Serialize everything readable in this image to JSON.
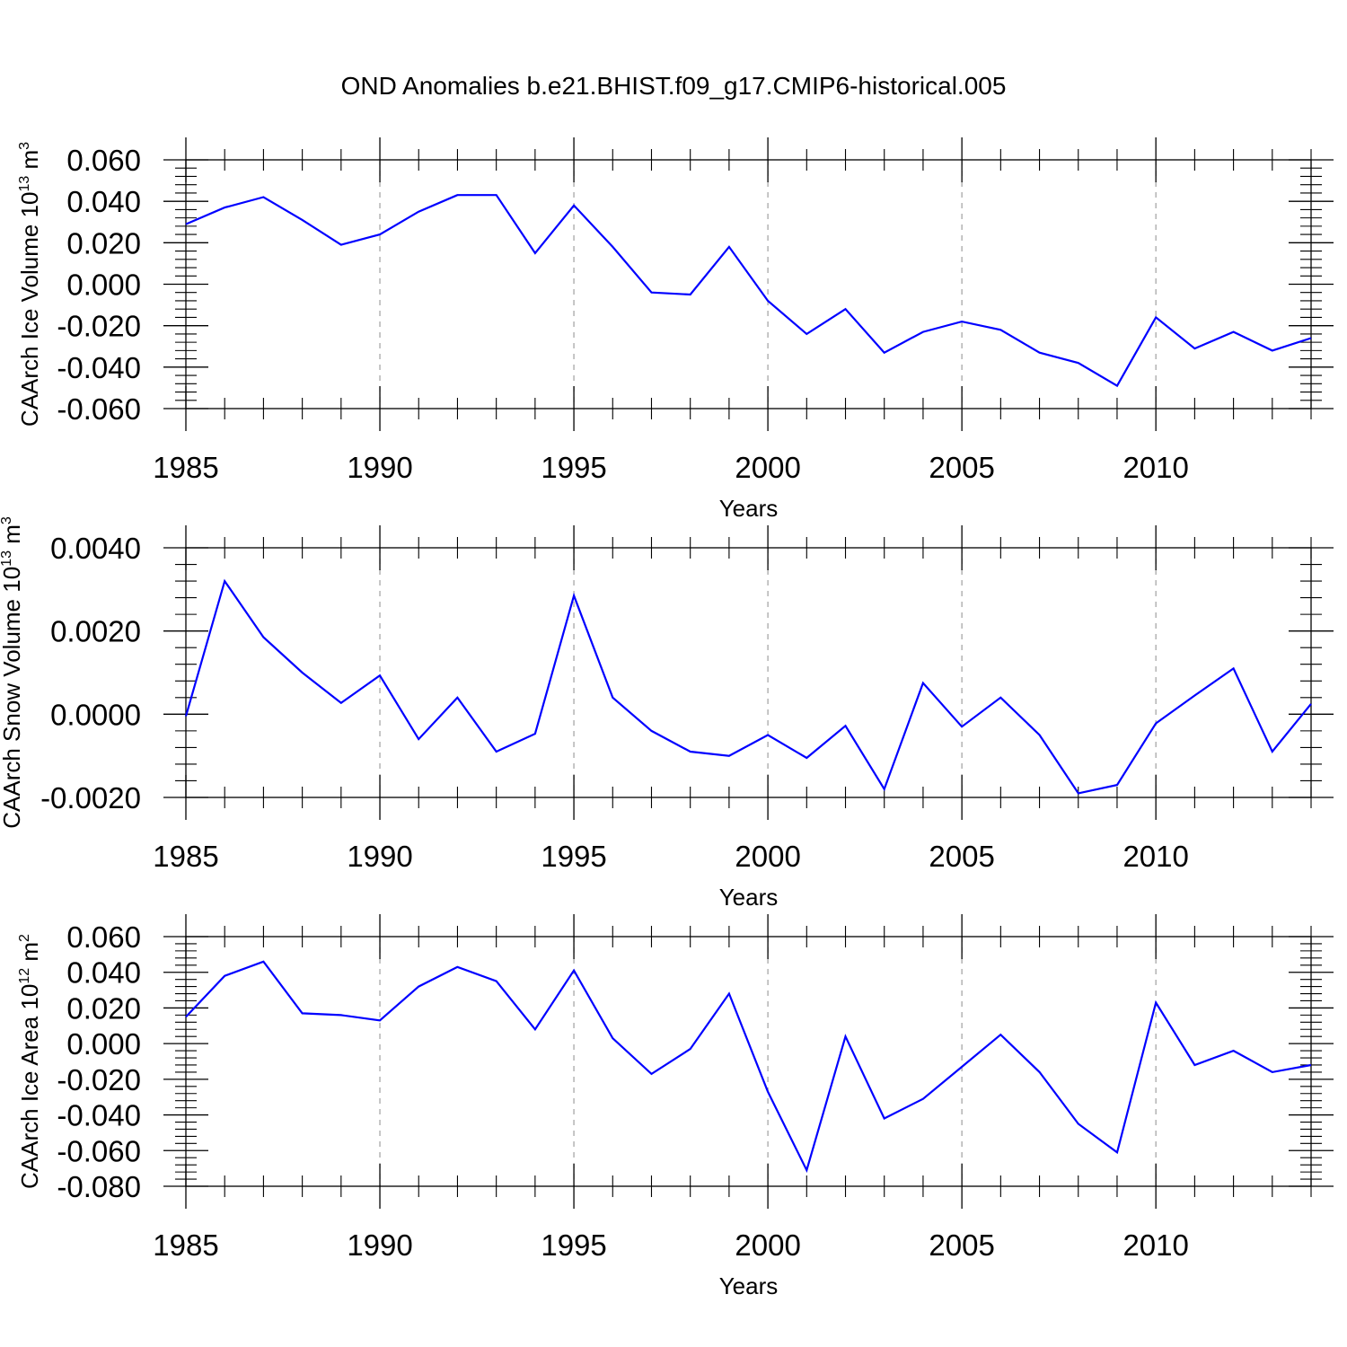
{
  "title": "OND Anomalies b.e21.BHIST.f09_g17.CMIP6-historical.005",
  "colors": {
    "line": "#0000ff",
    "axis": "#000000",
    "grid": "#a0a0a0",
    "background": "#ffffff"
  },
  "chart_data": [
    {
      "type": "line",
      "title": "OND Anomalies b.e21.BHIST.f09_g17.CMIP6-historical.005",
      "xlabel": "Years",
      "ylabel": {
        "prefix": "CAArch Ice Volume 10",
        "exponent": "13",
        "unit": " m",
        "unit_exponent": "3"
      },
      "xlim": [
        1985,
        2014
      ],
      "ylim": [
        -0.06,
        0.06
      ],
      "x_ticks": [
        1985,
        1990,
        1995,
        2000,
        2005,
        2010
      ],
      "x_tick_labels": [
        "1985",
        "1990",
        "1995",
        "2000",
        "2005",
        "2010"
      ],
      "y_ticks": [
        0.06,
        0.04,
        0.02,
        0.0,
        -0.02,
        -0.04,
        -0.06
      ],
      "y_tick_labels": [
        "0.060",
        "0.040",
        "0.020",
        "0.000",
        "-0.020",
        "-0.040",
        "-0.060"
      ],
      "grid": "vertical dashed at major x ticks",
      "series": [
        {
          "name": "Ice Volume anomaly",
          "x": [
            1985,
            1986,
            1987,
            1988,
            1989,
            1990,
            1991,
            1992,
            1993,
            1994,
            1995,
            1996,
            1997,
            1998,
            1999,
            2000,
            2001,
            2002,
            2003,
            2004,
            2005,
            2006,
            2007,
            2008,
            2009,
            2010,
            2011,
            2012,
            2013,
            2014
          ],
          "values": [
            0.029,
            0.037,
            0.042,
            0.031,
            0.019,
            0.024,
            0.035,
            0.043,
            0.043,
            0.015,
            0.038,
            0.018,
            -0.004,
            -0.005,
            0.018,
            -0.008,
            -0.024,
            -0.012,
            -0.033,
            -0.023,
            -0.018,
            -0.022,
            -0.033,
            -0.038,
            -0.049,
            -0.016,
            -0.031,
            -0.023,
            -0.032,
            -0.026
          ]
        }
      ]
    },
    {
      "type": "line",
      "xlabel": "Years",
      "ylabel": {
        "prefix": "CAArch Snow Volume 10",
        "exponent": "13",
        "unit": " m",
        "unit_exponent": "3"
      },
      "xlim": [
        1985,
        2014
      ],
      "ylim": [
        -0.002,
        0.004
      ],
      "x_ticks": [
        1985,
        1990,
        1995,
        2000,
        2005,
        2010
      ],
      "x_tick_labels": [
        "1985",
        "1990",
        "1995",
        "2000",
        "2005",
        "2010"
      ],
      "y_ticks": [
        0.004,
        0.002,
        0.0,
        -0.002
      ],
      "y_tick_labels": [
        "0.0040",
        "0.0020",
        "0.0000",
        "-0.0020"
      ],
      "grid": "vertical dashed at major x ticks",
      "series": [
        {
          "name": "Snow Volume anomaly",
          "x": [
            1985,
            1986,
            1987,
            1988,
            1989,
            1990,
            1991,
            1992,
            1993,
            1994,
            1995,
            1996,
            1997,
            1998,
            1999,
            2000,
            2001,
            2002,
            2003,
            2004,
            2005,
            2006,
            2007,
            2008,
            2009,
            2010,
            2011,
            2012,
            2013,
            2014
          ],
          "values": [
            -5e-05,
            0.0032,
            0.00185,
            0.001,
            0.00027,
            0.00093,
            -0.0006,
            0.0004,
            -0.0009,
            -0.00047,
            0.00285,
            0.0004,
            -0.0004,
            -0.0009,
            -0.001,
            -0.0005,
            -0.00105,
            -0.00028,
            -0.0018,
            0.00075,
            -0.0003,
            0.0004,
            -0.0005,
            -0.0019,
            -0.0017,
            -0.00022,
            0.00045,
            0.0011,
            -0.0009,
            0.00025
          ]
        }
      ]
    },
    {
      "type": "line",
      "xlabel": "Years",
      "ylabel": {
        "prefix": "CAArch Ice Area 10",
        "exponent": "12",
        "unit": " m",
        "unit_exponent": "2"
      },
      "xlim": [
        1985,
        2014
      ],
      "ylim": [
        -0.08,
        0.06
      ],
      "x_ticks": [
        1985,
        1990,
        1995,
        2000,
        2005,
        2010
      ],
      "x_tick_labels": [
        "1985",
        "1990",
        "1995",
        "2000",
        "2005",
        "2010"
      ],
      "y_ticks": [
        0.06,
        0.04,
        0.02,
        0.0,
        -0.02,
        -0.04,
        -0.06,
        -0.08
      ],
      "y_tick_labels": [
        "0.060",
        "0.040",
        "0.020",
        "0.000",
        "-0.020",
        "-0.040",
        "-0.060",
        "-0.080"
      ],
      "grid": "vertical dashed at major x ticks",
      "series": [
        {
          "name": "Ice Area anomaly",
          "x": [
            1985,
            1986,
            1987,
            1988,
            1989,
            1990,
            1991,
            1992,
            1993,
            1994,
            1995,
            1996,
            1997,
            1998,
            1999,
            2000,
            2001,
            2002,
            2003,
            2004,
            2005,
            2006,
            2007,
            2008,
            2009,
            2010,
            2011,
            2012,
            2013,
            2014
          ],
          "values": [
            0.015,
            0.038,
            0.046,
            0.017,
            0.016,
            0.013,
            0.032,
            0.043,
            0.035,
            0.008,
            0.041,
            0.003,
            -0.017,
            -0.003,
            0.028,
            -0.027,
            -0.071,
            0.004,
            -0.042,
            -0.031,
            -0.013,
            0.005,
            -0.016,
            -0.045,
            -0.061,
            0.023,
            -0.012,
            -0.004,
            -0.016,
            -0.012
          ]
        }
      ]
    }
  ]
}
